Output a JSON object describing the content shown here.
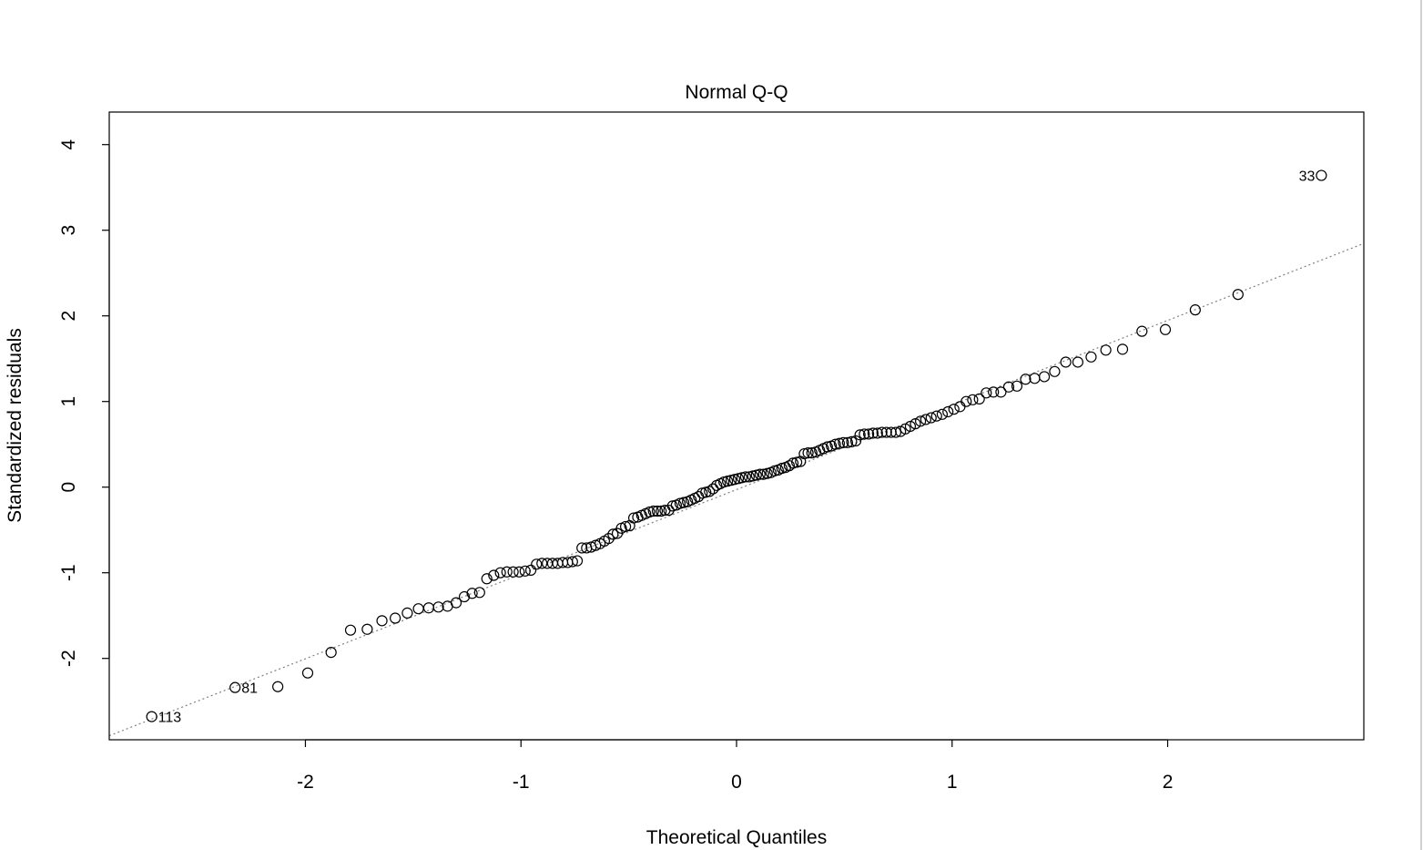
{
  "chart_data": {
    "type": "scatter",
    "title": "Normal Q-Q",
    "xlabel": "Theoretical Quantiles",
    "ylabel": "Standardized residuals",
    "xlim": [
      -2.91,
      2.91
    ],
    "ylim": [
      -2.95,
      4.38
    ],
    "x_ticks": [
      "-2",
      "-1",
      "0",
      "1",
      "2"
    ],
    "y_ticks": [
      "-2",
      "-1",
      "0",
      "1",
      "2",
      "3",
      "4"
    ],
    "grid": false,
    "reference_line": "dotted gray line through the first and third quartiles",
    "point_style": "open circle",
    "colors": {
      "points": "#000000",
      "reference_line": "#808080"
    },
    "sorted_standardized_residuals": [
      -2.68,
      -2.34,
      -2.33,
      -2.17,
      -1.93,
      -1.67,
      -1.66,
      -1.56,
      -1.53,
      -1.47,
      -1.42,
      -1.41,
      -1.4,
      -1.39,
      -1.35,
      -1.28,
      -1.24,
      -1.23,
      -1.07,
      -1.03,
      -1.0,
      -0.99,
      -0.99,
      -0.99,
      -0.98,
      -0.97,
      -0.9,
      -0.89,
      -0.89,
      -0.89,
      -0.89,
      -0.88,
      -0.88,
      -0.87,
      -0.86,
      -0.71,
      -0.71,
      -0.7,
      -0.68,
      -0.66,
      -0.63,
      -0.6,
      -0.55,
      -0.54,
      -0.48,
      -0.46,
      -0.45,
      -0.36,
      -0.35,
      -0.33,
      -0.31,
      -0.29,
      -0.28,
      -0.28,
      -0.28,
      -0.27,
      -0.27,
      -0.22,
      -0.21,
      -0.19,
      -0.18,
      -0.17,
      -0.15,
      -0.13,
      -0.11,
      -0.07,
      -0.06,
      -0.05,
      -0.02,
      0.02,
      0.04,
      0.06,
      0.07,
      0.08,
      0.09,
      0.1,
      0.11,
      0.12,
      0.12,
      0.13,
      0.14,
      0.15,
      0.15,
      0.16,
      0.17,
      0.19,
      0.2,
      0.22,
      0.23,
      0.25,
      0.28,
      0.29,
      0.3,
      0.39,
      0.4,
      0.4,
      0.41,
      0.43,
      0.45,
      0.47,
      0.48,
      0.5,
      0.51,
      0.52,
      0.52,
      0.53,
      0.54,
      0.61,
      0.62,
      0.62,
      0.63,
      0.63,
      0.64,
      0.64,
      0.64,
      0.64,
      0.65,
      0.68,
      0.71,
      0.74,
      0.77,
      0.79,
      0.81,
      0.83,
      0.85,
      0.88,
      0.91,
      0.94,
      1.0,
      1.02,
      1.03,
      1.1,
      1.11,
      1.11,
      1.17,
      1.18,
      1.26,
      1.27,
      1.29,
      1.35,
      1.46,
      1.46,
      1.52,
      1.6,
      1.61,
      1.82,
      1.84,
      2.07,
      2.25,
      3.64
    ],
    "point_labels": [
      {
        "rank": 1,
        "label": "113",
        "side": "right"
      },
      {
        "rank": 2,
        "label": "81",
        "side": "right"
      },
      {
        "rank": 150,
        "label": "33",
        "side": "left"
      }
    ]
  }
}
